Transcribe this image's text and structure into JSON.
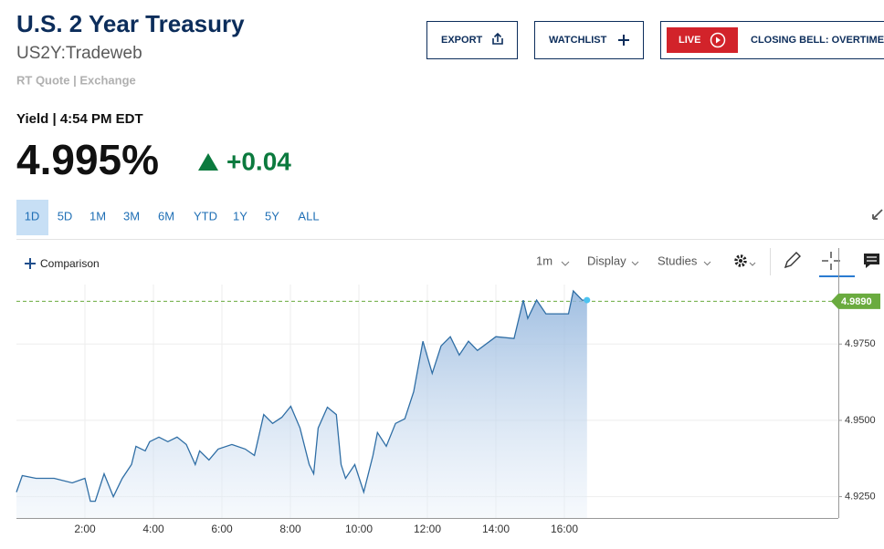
{
  "header": {
    "title": "U.S. 2 Year Treasury",
    "symbol": "US2Y:Tradeweb",
    "quote_source": "RT Quote | Exchange"
  },
  "buttons": {
    "export": "EXPORT",
    "watchlist": "WATCHLIST",
    "live": "LIVE",
    "closing_bell": "CLOSING BELL: OVERTIME"
  },
  "quote": {
    "label": "Yield | 4:54 PM EDT",
    "price": "4.995%",
    "change": "+0.04"
  },
  "ranges": [
    "1D",
    "5D",
    "1M",
    "3M",
    "6M",
    "YTD",
    "1Y",
    "5Y",
    "ALL"
  ],
  "toolbar": {
    "comparison": "Comparison",
    "interval": "1m",
    "display": "Display",
    "studies": "Studies"
  },
  "chart_data": {
    "type": "area",
    "color": "#2f6ea5",
    "x": [
      0,
      0.17,
      0.57,
      1.1,
      1.63,
      2.0,
      2.16,
      2.3,
      2.56,
      2.83,
      3.09,
      3.36,
      3.49,
      3.76,
      3.89,
      4.16,
      4.42,
      4.69,
      4.96,
      5.22,
      5.35,
      5.62,
      5.89,
      6.29,
      6.68,
      6.95,
      7.22,
      7.48,
      7.75,
      8.01,
      8.28,
      8.55,
      8.68,
      8.81,
      9.08,
      9.34,
      9.48,
      9.61,
      9.88,
      10.14,
      10.41,
      10.54,
      10.8,
      11.07,
      11.34,
      11.6,
      11.87,
      12.14,
      12.4,
      12.67,
      12.93,
      13.2,
      13.46,
      14.0,
      14.53,
      14.8,
      14.93,
      15.19,
      15.46,
      15.86,
      16.12,
      16.26,
      16.52,
      16.66
    ],
    "values": [
      4.9265,
      4.9319,
      4.931,
      4.931,
      4.9295,
      4.931,
      4.9235,
      4.9235,
      4.9325,
      4.925,
      4.931,
      4.9355,
      4.9415,
      4.94,
      4.943,
      4.9445,
      4.943,
      4.9445,
      4.9421,
      4.9355,
      4.94,
      4.937,
      4.9406,
      4.9421,
      4.9406,
      4.9385,
      4.9519,
      4.949,
      4.951,
      4.9546,
      4.9475,
      4.9355,
      4.9325,
      4.9475,
      4.9543,
      4.9519,
      4.9355,
      4.931,
      4.9355,
      4.9265,
      4.9385,
      4.946,
      4.9415,
      4.949,
      4.9505,
      4.9594,
      4.9759,
      4.9654,
      4.9744,
      4.9774,
      4.9714,
      4.9759,
      4.9729,
      4.9774,
      4.9768,
      4.9894,
      4.9834,
      4.9894,
      4.9849,
      4.9849,
      4.9849,
      4.9924,
      4.9894,
      4.9894
    ],
    "xlim": [
      0,
      24
    ],
    "xticks": [
      {
        "value": 2,
        "label": "2:00"
      },
      {
        "value": 4,
        "label": "4:00"
      },
      {
        "value": 6,
        "label": "6:00"
      },
      {
        "value": 8,
        "label": "8:00"
      },
      {
        "value": 10,
        "label": "10:00"
      },
      {
        "value": 12,
        "label": "12:00"
      },
      {
        "value": 14,
        "label": "14:00"
      },
      {
        "value": 16,
        "label": "16:00"
      }
    ],
    "ylim": [
      4.918,
      4.9945
    ],
    "yticks": [
      {
        "value": 4.925,
        "label": "4.9250"
      },
      {
        "value": 4.95,
        "label": "4.9500"
      },
      {
        "value": 4.975,
        "label": "4.9750"
      }
    ],
    "reference_line": {
      "value": 4.989,
      "label": "4.9890",
      "color": "#6aab3f"
    },
    "grid": true
  }
}
